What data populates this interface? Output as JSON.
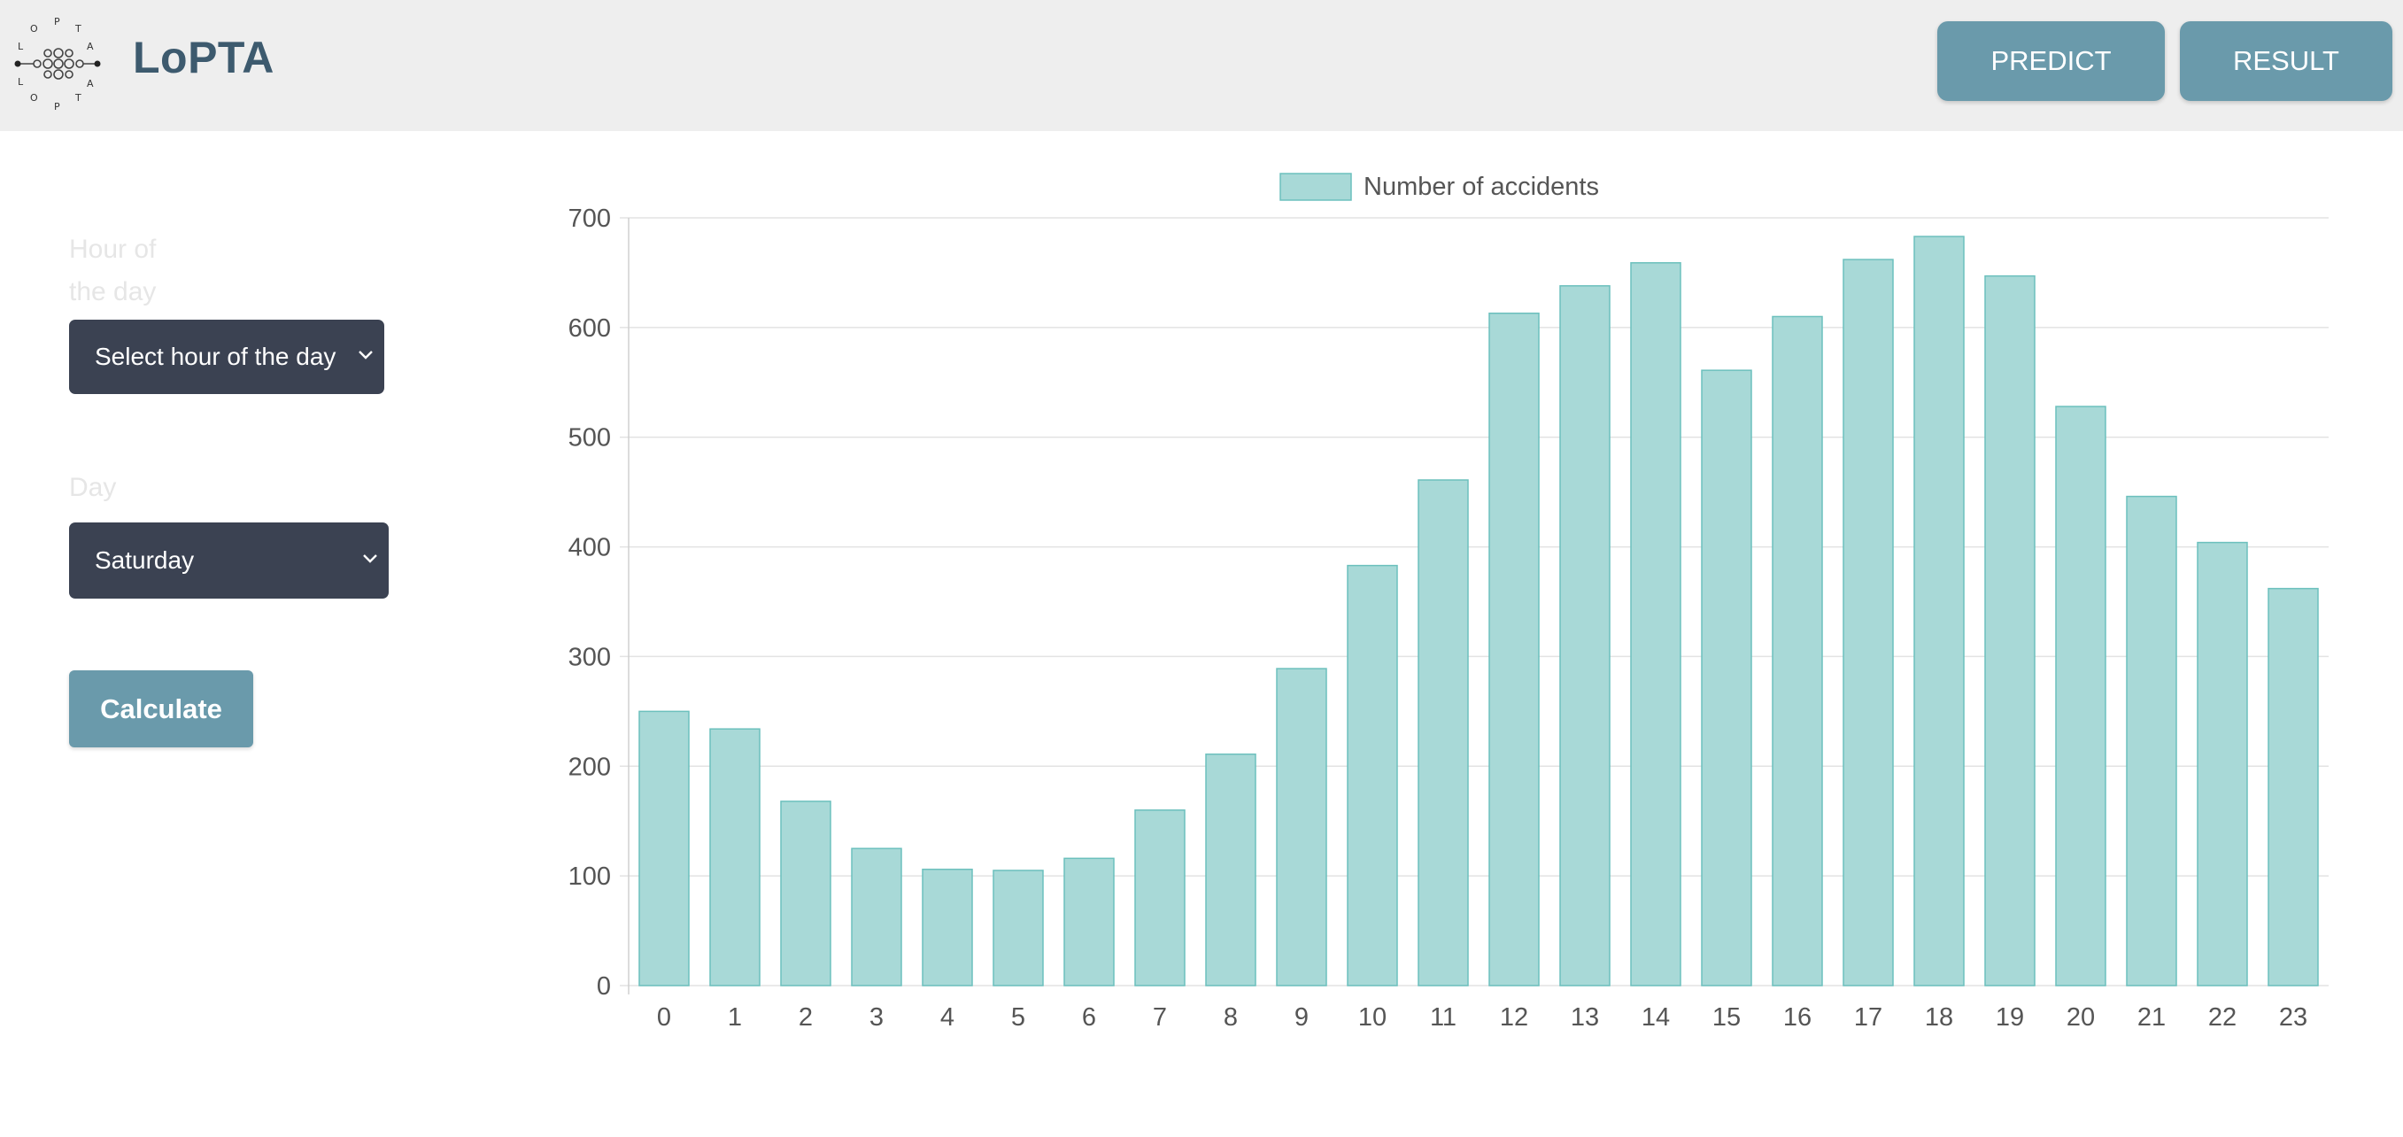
{
  "app": {
    "brand": "LoPTA"
  },
  "nav": {
    "predict_label": "PREDICT",
    "result_label": "RESULT"
  },
  "form": {
    "hour_label": "Hour of the day",
    "hour_select": {
      "value": "Select hour of the day"
    },
    "day_label": "Day",
    "day_select": {
      "value": "Saturday"
    },
    "calculate_label": "Calculate"
  },
  "colors": {
    "header_bg": "#eeeeee",
    "brand": "#3d5a6e",
    "accent_button": "#6a9aab",
    "select_bg": "#3b4252",
    "bar_fill": "#a8d9d7",
    "bar_border": "#6cc0bd"
  },
  "icons": {
    "logo": "lopta-network-logo",
    "select_arrow": "chevron-down-icon"
  },
  "chart_data": {
    "type": "bar",
    "legend": "Number of accidents",
    "legend_position": "top-center",
    "categories": [
      "0",
      "1",
      "2",
      "3",
      "4",
      "5",
      "6",
      "7",
      "8",
      "9",
      "10",
      "11",
      "12",
      "13",
      "14",
      "15",
      "16",
      "17",
      "18",
      "19",
      "20",
      "21",
      "22",
      "23"
    ],
    "series": [
      {
        "name": "Number of accidents",
        "values": [
          250,
          234,
          168,
          125,
          106,
          105,
          116,
          160,
          211,
          289,
          383,
          461,
          613,
          638,
          659,
          561,
          610,
          662,
          683,
          647,
          528,
          446,
          404,
          362
        ]
      }
    ],
    "yticks": [
      0,
      100,
      200,
      300,
      400,
      500,
      600,
      700
    ],
    "ylim": [
      0,
      700
    ],
    "grid": true
  }
}
